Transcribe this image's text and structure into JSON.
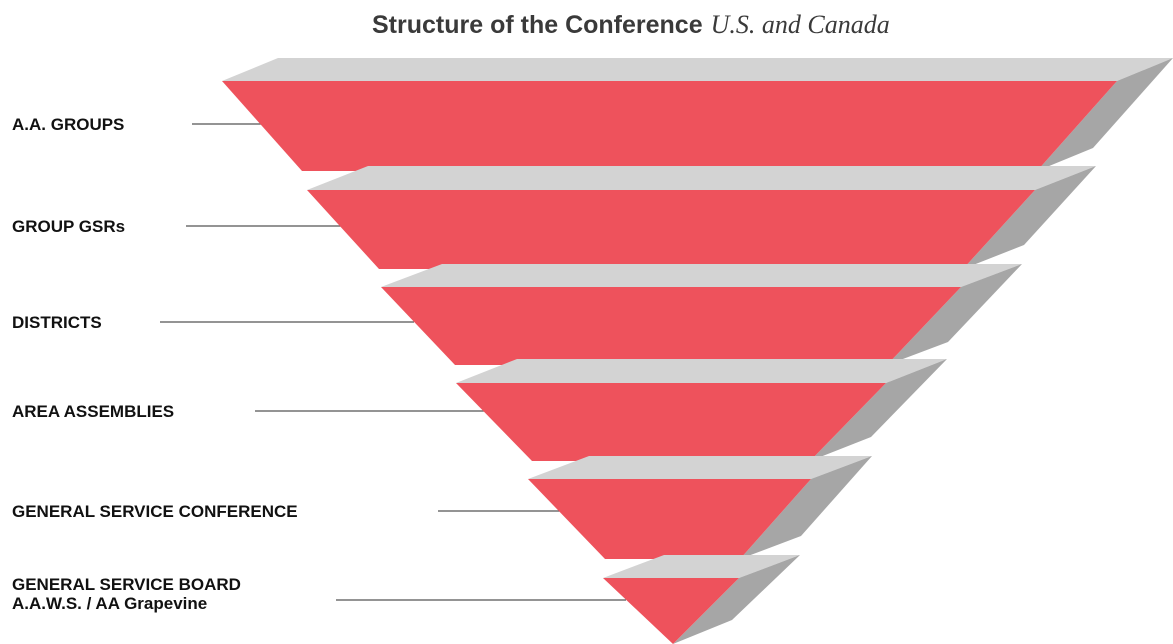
{
  "title": {
    "main": "Structure of the Conference",
    "sub": "U.S. and Canada"
  },
  "levels": [
    {
      "label": "A.A. GROUPS"
    },
    {
      "label": "GROUP GSRs"
    },
    {
      "label": "DISTRICTS"
    },
    {
      "label": "AREA ASSEMBLIES"
    },
    {
      "label": "GENERAL SERVICE CONFERENCE"
    },
    {
      "label": "GENERAL SERVICE BOARD",
      "label2": "A.A.W.S. / AA Grapevine"
    }
  ],
  "colors": {
    "face": "#ee525c",
    "top": "#d3d3d3",
    "side": "#a6a6a6",
    "leader": "#555555",
    "text": "#111111"
  }
}
